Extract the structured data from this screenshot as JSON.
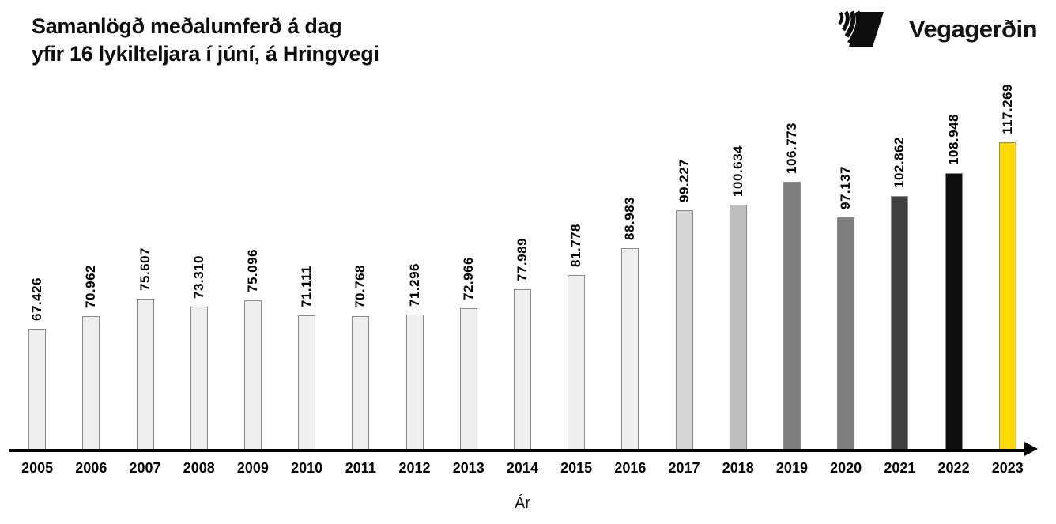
{
  "header": {
    "title_line1": "Samanlögð meðalumferð á dag",
    "title_line2": "yfir 16 lykilteljara í júní, á Hringvegi",
    "logo_text": "Vegagerðin"
  },
  "chart_data": {
    "type": "bar",
    "title": "Samanlögð meðalumferð á dag yfir 16 lykilteljara í júní, á Hringvegi",
    "xlabel": "Ár",
    "ylabel": "",
    "categories": [
      "2005",
      "2006",
      "2007",
      "2008",
      "2009",
      "2010",
      "2011",
      "2012",
      "2013",
      "2014",
      "2015",
      "2016",
      "2017",
      "2018",
      "2019",
      "2020",
      "2021",
      "2022",
      "2023"
    ],
    "values": [
      67426,
      70962,
      75607,
      73310,
      75096,
      71111,
      70768,
      71296,
      72966,
      77989,
      81778,
      88983,
      99227,
      100634,
      106773,
      97137,
      102862,
      108948,
      117269
    ],
    "value_labels": [
      "67.426",
      "70.962",
      "75.607",
      "73.310",
      "75.096",
      "71.111",
      "70.768",
      "71.296",
      "72.966",
      "77.989",
      "81.778",
      "88.983",
      "99.227",
      "100.634",
      "106.773",
      "97.137",
      "102.862",
      "108.948",
      "117.269"
    ],
    "bar_colors": [
      "#efefef",
      "#efefef",
      "#efefef",
      "#efefef",
      "#efefef",
      "#efefef",
      "#efefef",
      "#efefef",
      "#efefef",
      "#efefef",
      "#efefef",
      "#efefef",
      "#d5d5d5",
      "#bdbdbd",
      "#7f7f7f",
      "#7f7f7f",
      "#3f3f3f",
      "#0d0d0d",
      "#ffd900"
    ],
    "bar_border_color": "#8a8a8a",
    "axis_color": "#000000",
    "baseline_value": 35000,
    "ylim": [
      35000,
      118000
    ],
    "grid": false,
    "legend": "none",
    "value_label_rotation": 90,
    "highlight_category": "2023",
    "highlight_color": "#ffd900"
  }
}
